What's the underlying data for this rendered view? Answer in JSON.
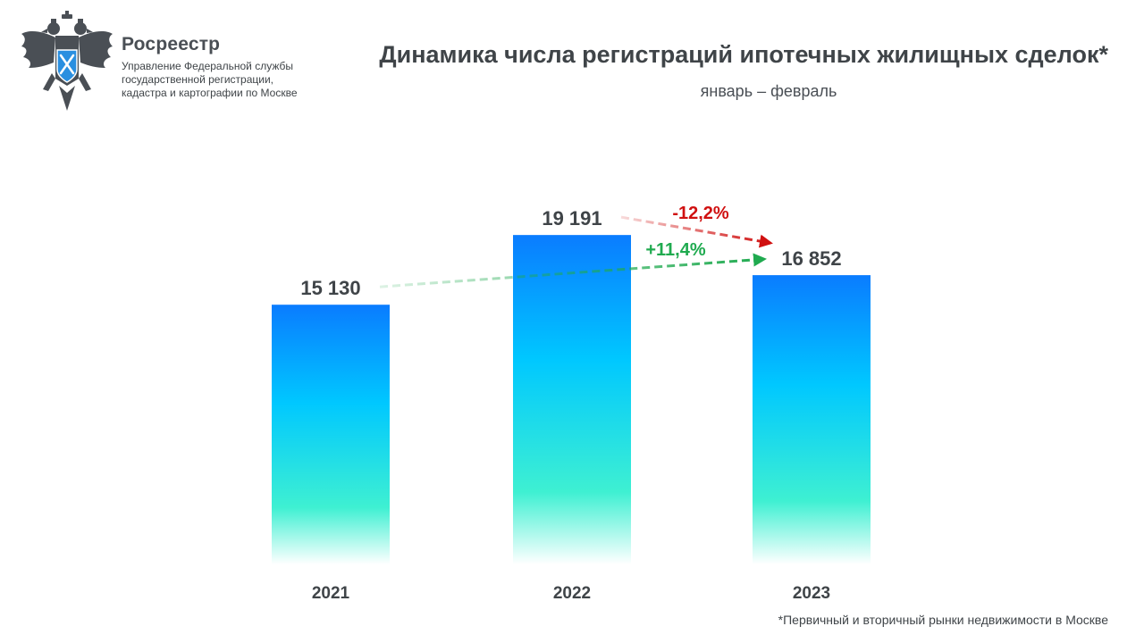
{
  "header": {
    "brand_name": "Росреестр",
    "brand_lines": [
      "Управление Федеральной службы",
      "государственной регистрации,",
      "кадастра и картографии по Москве"
    ],
    "title": "Динамика числа регистраций ипотечных жилищных сделок*",
    "subtitle": "январь – февраль"
  },
  "footnote": "*Первичный и вторичный рынки недвижимости в Москве",
  "colors": {
    "bar_top": "#0a7cff",
    "bar_mid": "#00c8ff",
    "bar_low": "#3ef0d2",
    "increase": "#1faa4f",
    "decrease": "#d01010",
    "text": "#3f4448"
  },
  "chart_data": {
    "type": "bar",
    "title": "Динамика числа регистраций ипотечных жилищных сделок*",
    "subtitle": "январь – февраль",
    "categories": [
      "2021",
      "2022",
      "2023"
    ],
    "values": [
      15130,
      19191,
      16852
    ],
    "value_labels": [
      "15 130",
      "19 191",
      "16 852"
    ],
    "xlabel": "",
    "ylabel": "",
    "ylim": [
      0,
      22000
    ],
    "grid": false,
    "annotations": [
      {
        "text": "-12,2%",
        "from": "2022",
        "to": "2023",
        "kind": "decrease"
      },
      {
        "text": "+11,4%",
        "from": "2021",
        "to": "2023",
        "kind": "increase"
      }
    ]
  }
}
